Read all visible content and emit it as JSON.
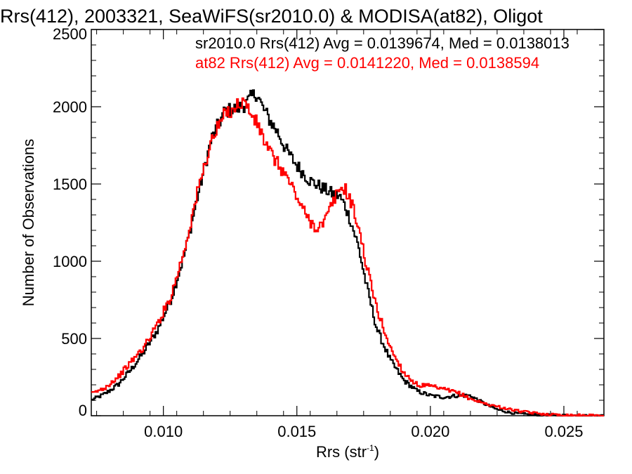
{
  "chart_data": {
    "type": "line",
    "title": "Rrs(412), 2003321, SeaWiFS(sr2010.0) & MODISA(at82), Oligot",
    "xlabel_main": "Rrs (str",
    "xlabel_sup": "-1",
    "xlabel_close": ")",
    "ylabel": "Number of Observations",
    "xlim": [
      0.0073,
      0.0265
    ],
    "ylim": [
      0,
      2500
    ],
    "x_ticks": [
      0.01,
      0.015,
      0.02,
      0.025
    ],
    "x_tick_labels": [
      "0.010",
      "0.015",
      "0.020",
      "0.025"
    ],
    "y_ticks": [
      0,
      500,
      1000,
      1500,
      2000,
      2500
    ],
    "y_tick_labels": [
      "0",
      "500",
      "1000",
      "1500",
      "2000",
      "2500"
    ],
    "annotations": [
      {
        "text": "sr2010.0 Rrs(412) Avg = 0.0139674, Med = 0.0138013",
        "color": "#000000"
      },
      {
        "text": "at82 Rrs(412) Avg = 0.0141220, Med = 0.0138594",
        "color": "#ff0000"
      }
    ],
    "series": [
      {
        "color": "#000000",
        "x": [
          0.0073,
          0.0078,
          0.0083,
          0.0088,
          0.0093,
          0.0098,
          0.0103,
          0.0108,
          0.0113,
          0.0118,
          0.0123,
          0.0128,
          0.0131,
          0.0133,
          0.0135,
          0.0137,
          0.014,
          0.0143,
          0.0146,
          0.015,
          0.0155,
          0.016,
          0.0163,
          0.0166,
          0.0168,
          0.017,
          0.0173,
          0.0176,
          0.018,
          0.0185,
          0.019,
          0.0195,
          0.02,
          0.0205,
          0.021,
          0.0215,
          0.022,
          0.0225,
          0.023,
          0.0235,
          0.024,
          0.025,
          0.026,
          0.0265
        ],
        "y": [
          100,
          140,
          200,
          300,
          420,
          560,
          760,
          1050,
          1430,
          1790,
          1970,
          1990,
          2020,
          2060,
          2090,
          2000,
          1910,
          1830,
          1720,
          1620,
          1520,
          1470,
          1440,
          1420,
          1360,
          1270,
          1100,
          850,
          560,
          360,
          230,
          160,
          130,
          120,
          130,
          130,
          80,
          40,
          20,
          10,
          5,
          2,
          0,
          0
        ]
      },
      {
        "color": "#ff0000",
        "x": [
          0.0073,
          0.0078,
          0.0083,
          0.0088,
          0.0093,
          0.0098,
          0.0103,
          0.0108,
          0.0113,
          0.0118,
          0.0123,
          0.0127,
          0.013,
          0.0133,
          0.0136,
          0.0139,
          0.0142,
          0.0145,
          0.0148,
          0.0151,
          0.0154,
          0.0157,
          0.016,
          0.0163,
          0.0166,
          0.0168,
          0.017,
          0.0173,
          0.0176,
          0.018,
          0.0185,
          0.019,
          0.0195,
          0.02,
          0.0205,
          0.021,
          0.0215,
          0.022,
          0.0225,
          0.023,
          0.0235,
          0.024,
          0.0245,
          0.025,
          0.026,
          0.0265
        ],
        "y": [
          140,
          180,
          250,
          350,
          450,
          600,
          780,
          1080,
          1460,
          1780,
          1950,
          2000,
          2040,
          1950,
          1860,
          1730,
          1650,
          1580,
          1490,
          1380,
          1280,
          1220,
          1240,
          1360,
          1470,
          1470,
          1400,
          1230,
          980,
          690,
          440,
          280,
          200,
          190,
          170,
          150,
          110,
          80,
          60,
          40,
          25,
          15,
          8,
          5,
          1,
          0
        ]
      }
    ]
  }
}
